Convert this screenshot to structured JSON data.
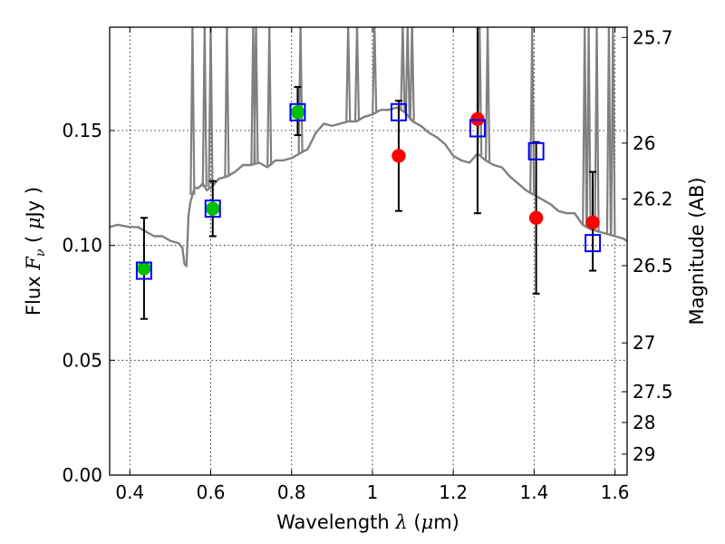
{
  "chart_data": {
    "type": "scatter",
    "title": "",
    "xlabel": {
      "prefix": "Wavelength  ",
      "symbol": "λ",
      "suffix": " (",
      "unit_symbol": "μ",
      "unit": "m)"
    },
    "ylabel": {
      "prefix": "Flux  ",
      "symbol": "F",
      "sub": "ν",
      "middle": "  ( ",
      "unit_symbol": "μ",
      "unit": "Jy )"
    },
    "y2label": "Magnitude (AB)",
    "xlim": [
      0.35,
      1.63
    ],
    "ylim": [
      0.0,
      0.195
    ],
    "grid": true,
    "x_ticks": [
      {
        "value": 0.4,
        "label": "0.4"
      },
      {
        "value": 0.6,
        "label": "0.6"
      },
      {
        "value": 0.8,
        "label": "0.8"
      },
      {
        "value": 1.0,
        "label": "1"
      },
      {
        "value": 1.2,
        "label": "1.2"
      },
      {
        "value": 1.4,
        "label": "1.4"
      },
      {
        "value": 1.6,
        "label": "1.6"
      }
    ],
    "y_ticks": [
      {
        "value": 0.0,
        "label": "0.00"
      },
      {
        "value": 0.05,
        "label": "0.05"
      },
      {
        "value": 0.1,
        "label": "0.10"
      },
      {
        "value": 0.15,
        "label": "0.15"
      }
    ],
    "y2_ticks": [
      {
        "mag": 25.7,
        "label": "25.7"
      },
      {
        "mag": 26.0,
        "label": "26"
      },
      {
        "mag": 26.2,
        "label": "26.2"
      },
      {
        "mag": 26.5,
        "label": "26.5"
      },
      {
        "mag": 27.0,
        "label": "27"
      },
      {
        "mag": 27.5,
        "label": "27.5"
      },
      {
        "mag": 28.0,
        "label": "28"
      },
      {
        "mag": 29.0,
        "label": "29"
      }
    ],
    "series": [
      {
        "kind": "line",
        "color": "#808080",
        "x": [
          0.35,
          0.37,
          0.4,
          0.42,
          0.44,
          0.46,
          0.48,
          0.5,
          0.52,
          0.53,
          0.535,
          0.54,
          0.545,
          0.55,
          0.56,
          0.57,
          0.58,
          0.59,
          0.6,
          0.62,
          0.64,
          0.66,
          0.68,
          0.7,
          0.72,
          0.74,
          0.76,
          0.78,
          0.8,
          0.82,
          0.84,
          0.86,
          0.88,
          0.9,
          0.92,
          0.94,
          0.96,
          0.98,
          1.0,
          1.02,
          1.04,
          1.06,
          1.08,
          1.1,
          1.12,
          1.14,
          1.16,
          1.18,
          1.2,
          1.22,
          1.24,
          1.26,
          1.28,
          1.3,
          1.32,
          1.34,
          1.36,
          1.38,
          1.4,
          1.42,
          1.44,
          1.46,
          1.48,
          1.5,
          1.52,
          1.54,
          1.56,
          1.58,
          1.6,
          1.62,
          1.63
        ],
        "y": [
          0.108,
          0.109,
          0.108,
          0.108,
          0.106,
          0.104,
          0.104,
          0.102,
          0.101,
          0.099,
          0.092,
          0.091,
          0.113,
          0.119,
          0.125,
          0.125,
          0.127,
          0.124,
          0.125,
          0.129,
          0.13,
          0.132,
          0.135,
          0.135,
          0.136,
          0.134,
          0.137,
          0.137,
          0.138,
          0.14,
          0.142,
          0.149,
          0.153,
          0.152,
          0.153,
          0.154,
          0.154,
          0.156,
          0.157,
          0.159,
          0.159,
          0.16,
          0.158,
          0.154,
          0.152,
          0.149,
          0.147,
          0.144,
          0.139,
          0.137,
          0.136,
          0.14,
          0.137,
          0.135,
          0.134,
          0.13,
          0.127,
          0.124,
          0.122,
          0.12,
          0.118,
          0.115,
          0.114,
          0.114,
          0.109,
          0.107,
          0.106,
          0.105,
          0.104,
          0.103,
          0.102
        ]
      },
      {
        "name": "",
        "kind": "errorbar",
        "color": "#000000",
        "x": [
          0.435,
          0.605,
          0.815,
          1.065,
          1.26,
          1.405,
          1.545
        ],
        "y": [
          0.09,
          0.116,
          0.158,
          0.139,
          0.155,
          0.112,
          0.11
        ],
        "ylow": [
          0.068,
          0.104,
          0.148,
          0.115,
          0.114,
          0.079,
          0.089
        ],
        "yhigh": [
          0.112,
          0.128,
          0.169,
          0.163,
          0.195,
          0.145,
          0.132
        ]
      },
      {
        "name": "",
        "kind": "circles",
        "color": "#00c000",
        "x": [
          0.435,
          0.605,
          0.815
        ],
        "y": [
          0.09,
          0.116,
          0.158
        ]
      },
      {
        "name": "",
        "kind": "circles",
        "color": "#ff0000",
        "x": [
          1.065,
          1.26,
          1.405,
          1.545
        ],
        "y": [
          0.139,
          0.155,
          0.112,
          0.11
        ]
      },
      {
        "name": "",
        "kind": "squares",
        "color": "#0000ff",
        "x": [
          0.435,
          0.605,
          0.815,
          1.065,
          1.26,
          1.405,
          1.545
        ],
        "y": [
          0.089,
          0.116,
          0.158,
          0.158,
          0.151,
          0.141,
          0.101
        ]
      }
    ],
    "emission_spikes": {
      "color": "#808080",
      "x": [
        0.555,
        0.585,
        0.6,
        0.64,
        0.705,
        0.712,
        0.745,
        0.822,
        0.94,
        0.962,
        1.005,
        1.075,
        1.087,
        1.098,
        1.265,
        1.285,
        1.395,
        1.525,
        1.535,
        1.555,
        1.585,
        1.595
      ]
    }
  }
}
